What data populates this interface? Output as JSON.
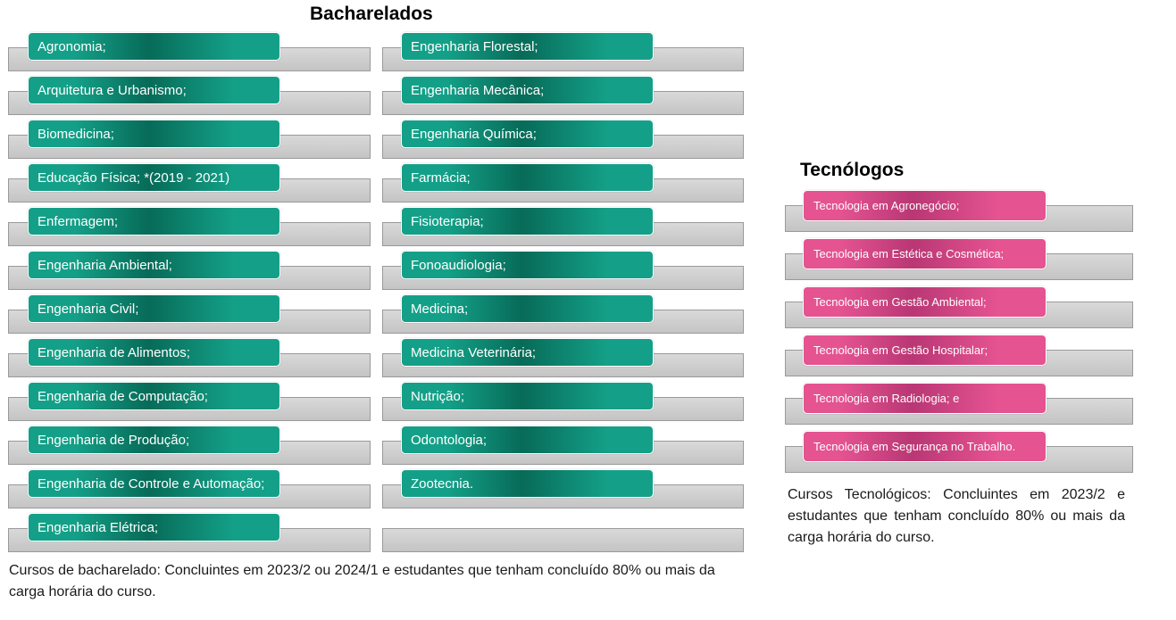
{
  "bacharelados": {
    "title": "Bacharelados",
    "column1": [
      "Agronomia;",
      "Arquitetura e Urbanismo;",
      "Biomedicina;",
      "Educação Física;  *(2019 - 2021)",
      "Enfermagem;",
      "Engenharia Ambiental;",
      "Engenharia Civil;",
      "Engenharia de Alimentos;",
      "Engenharia de Computação;",
      "Engenharia de Produção;",
      "Engenharia de Controle e Automação;",
      "Engenharia Elétrica;"
    ],
    "column2": [
      "Engenharia Florestal;",
      "Engenharia Mecânica;",
      "Engenharia Química;",
      "Farmácia;",
      "Fisioterapia;",
      "Fonoaudiologia;",
      "Medicina;",
      "Medicina Veterinária;",
      "Nutrição;",
      "Odontologia;",
      "Zootecnia."
    ],
    "note": "Cursos de bacharelado: Concluintes em 2023/2 ou 2024/1 e estudantes que tenham concluído 80% ou mais da carga horária do curso.",
    "color": "#14a088"
  },
  "tecnologos": {
    "title": "Tecnólogos",
    "items": [
      "Tecnologia em Agronegócio;",
      "Tecnologia em Estética e Cosmética;",
      "Tecnologia em Gestão Ambiental;",
      "Tecnologia em Gestão Hospitalar;",
      "Tecnologia em Radiologia; e",
      "Tecnologia em Segurança no Trabalho."
    ],
    "note": "Cursos Tecnológicos: Concluintes em 2023/2 e estudantes que tenham concluído 80% ou mais da carga horária do curso.",
    "color": "#e55391"
  }
}
